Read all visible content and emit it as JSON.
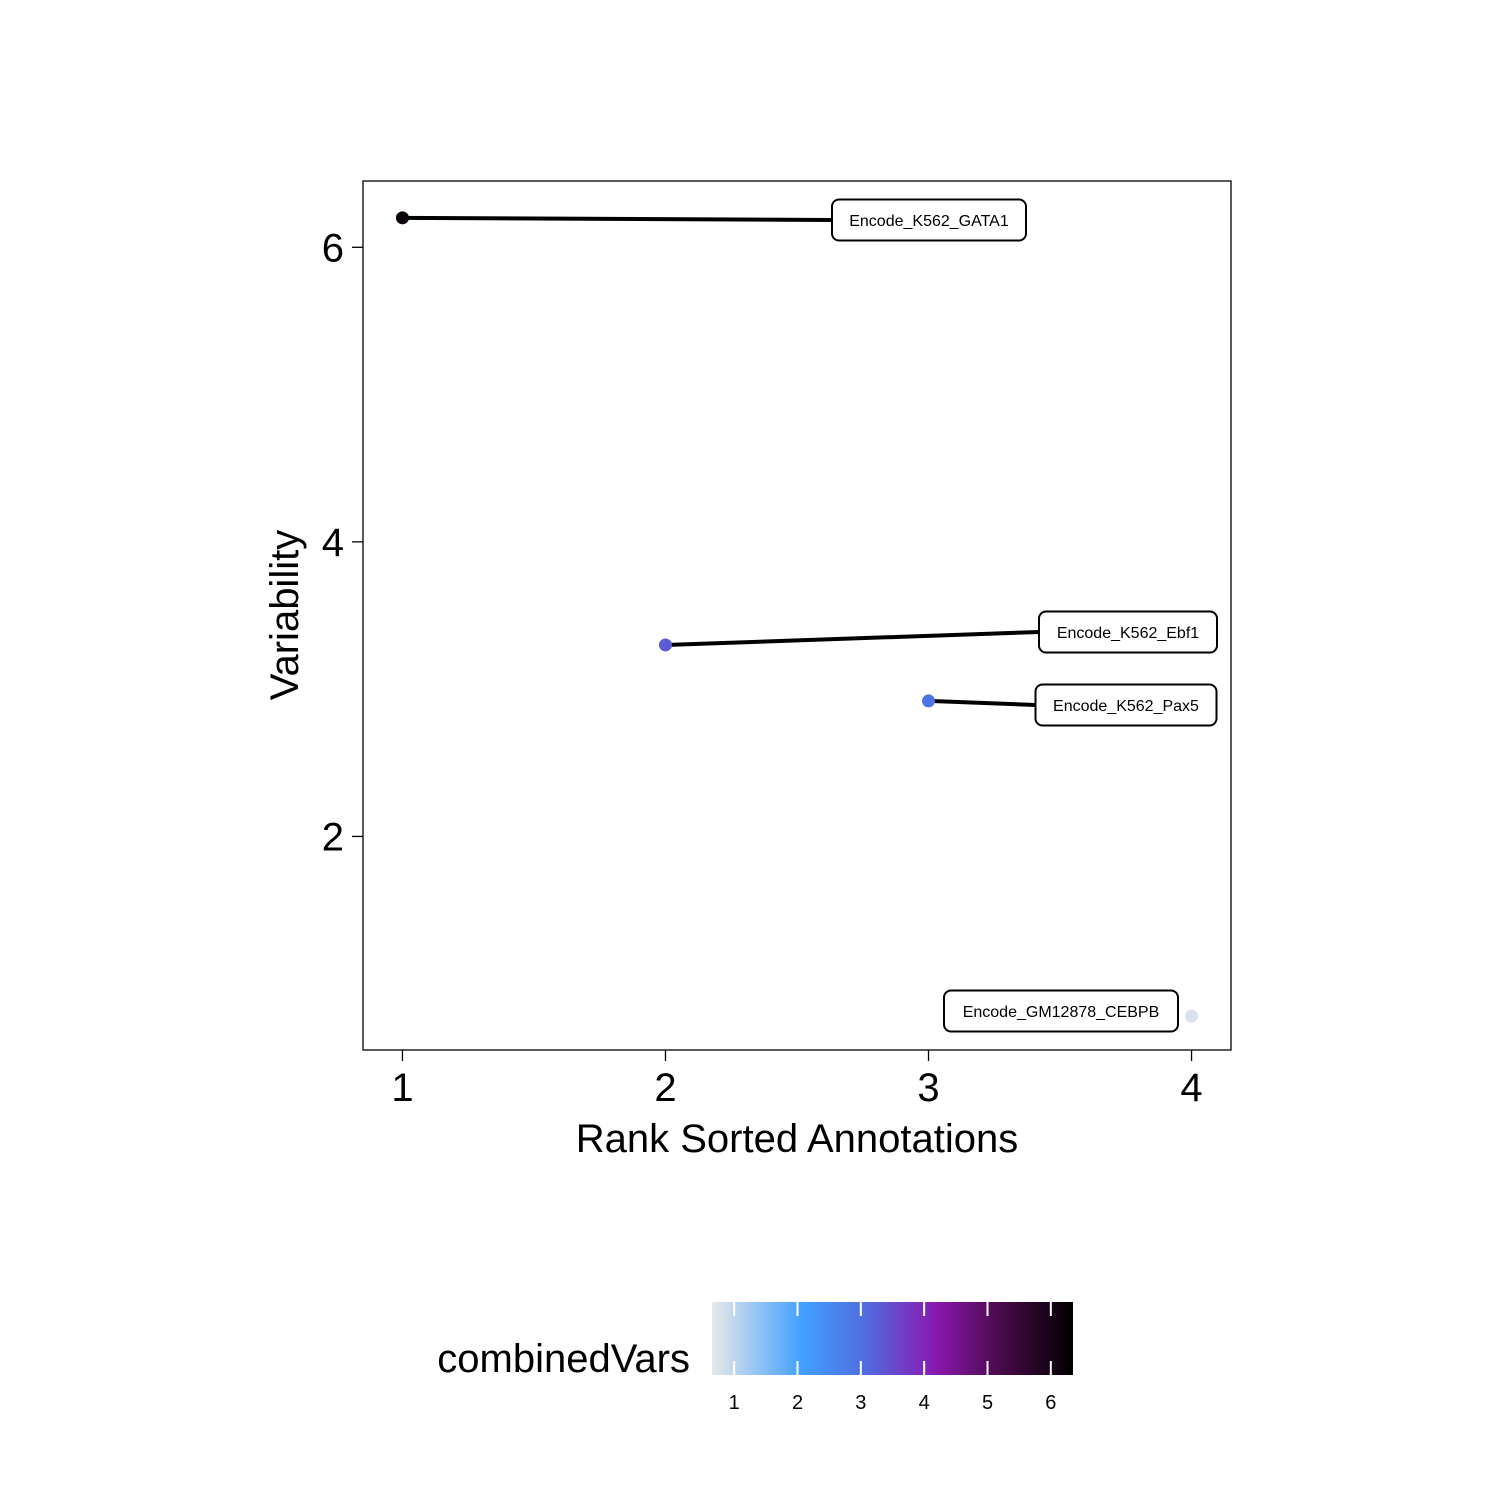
{
  "chart_data": {
    "type": "scatter",
    "title": "",
    "xlabel": "Rank Sorted Annotations",
    "ylabel": "Variability",
    "xlim": [
      0.85,
      4.15
    ],
    "ylim": [
      0.55,
      6.45
    ],
    "x_ticks": [
      1,
      2,
      3,
      4
    ],
    "y_ticks": [
      2,
      4,
      6
    ],
    "grid": false,
    "points": [
      {
        "x": 1,
        "y": 6.2,
        "label": "Encode_K562_GATA1",
        "color_value": 6.2
      },
      {
        "x": 2,
        "y": 3.3,
        "label": "Encode_K562_Ebf1",
        "color_value": 3.3
      },
      {
        "x": 3,
        "y": 2.92,
        "label": "Encode_K562_Pax5",
        "color_value": 2.92
      },
      {
        "x": 4,
        "y": 0.78,
        "label": "Encode_GM12878_CEBPB",
        "color_value": 0.78
      }
    ],
    "legend": {
      "title": "combinedVars",
      "position": "bottom",
      "range": [
        0.65,
        6.35
      ],
      "ticks": [
        1,
        2,
        3,
        4,
        5,
        6
      ],
      "colors": [
        "#e8e8e8",
        "#42a0ff",
        "#4f6ee0",
        "#8a18b0",
        "#4a0a4a",
        "#000000"
      ]
    }
  }
}
